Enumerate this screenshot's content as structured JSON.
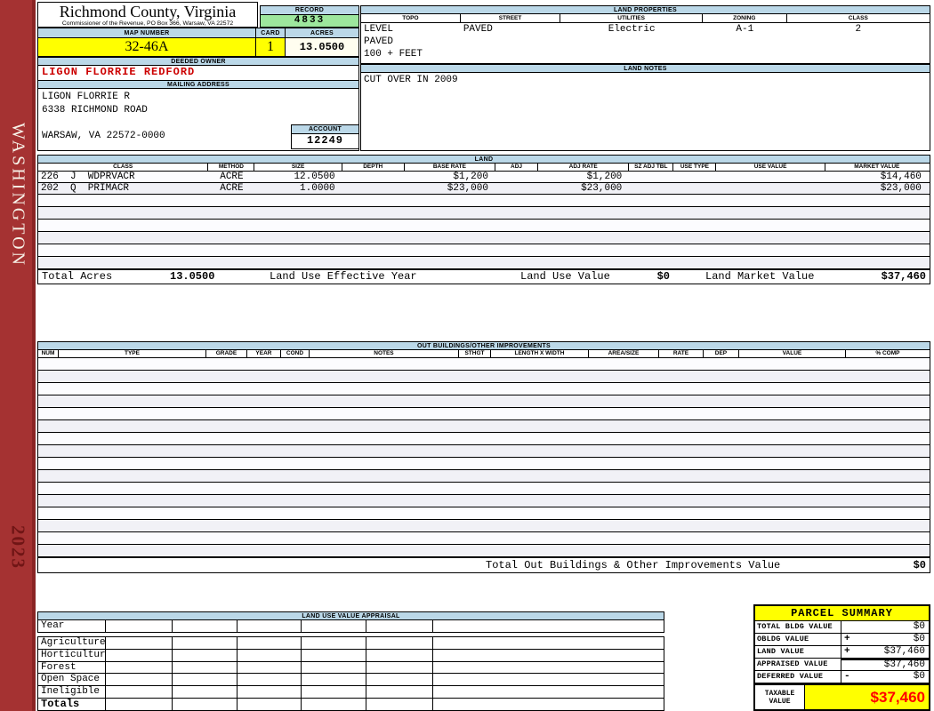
{
  "sidebar": {
    "county": "WASHINGTON",
    "year": "2023"
  },
  "header": {
    "title": "Richmond County, Virginia",
    "subtitle": "Commissioner of the Revenue, PO Box 366, Warsaw, VA 22572",
    "record_label": "RECORD",
    "record_value": "4833",
    "map_number_label": "MAP NUMBER",
    "map_number": "32-46A",
    "card_label": "CARD",
    "card": "1",
    "acres_label": "ACRES",
    "acres": "13.0500"
  },
  "owner": {
    "label": "DEEDED OWNER",
    "name": "LIGON FLORRIE REDFORD"
  },
  "mailing": {
    "label": "MAILING ADDRESS",
    "lines": [
      "LIGON FLORRIE R",
      "6338 RICHMOND ROAD",
      "",
      "WARSAW, VA 22572-0000"
    ]
  },
  "account": {
    "label": "ACCOUNT",
    "value": "12249"
  },
  "land_properties": {
    "label": "LAND PROPERTIES",
    "columns": [
      "TOPO",
      "STREET",
      "UTILITIES",
      "ZONING",
      "CLASS"
    ],
    "rows": [
      [
        "LEVEL",
        "PAVED",
        "Electric",
        "A-1",
        "2"
      ],
      [
        "PAVED",
        "",
        "",
        "",
        ""
      ],
      [
        "100 + FEET",
        "",
        "",
        "",
        ""
      ]
    ]
  },
  "land_notes": {
    "label": "LAND NOTES",
    "text": "CUT OVER IN 2009"
  },
  "land": {
    "label": "LAND",
    "columns": [
      "CLASS",
      "METHOD",
      "SIZE",
      "DEPTH",
      "BASE RATE",
      "ADJ",
      "ADJ RATE",
      "SZ ADJ TBL",
      "USE TYPE",
      "USE VALUE",
      "MARKET VALUE"
    ],
    "rows": [
      [
        "226  J  WDPRVACR",
        "ACRE",
        "12.0500",
        "",
        "$1,200",
        "",
        "$1,200",
        "",
        "",
        "",
        "$14,460"
      ],
      [
        "202  Q  PRIMACR",
        "ACRE",
        "1.0000",
        "",
        "$23,000",
        "",
        "$23,000",
        "",
        "",
        "",
        "$23,000"
      ]
    ],
    "empty_rows": 6,
    "totals": {
      "total_acres_label": "Total Acres",
      "total_acres": "13.0500",
      "effective_year_label": "Land Use Effective Year",
      "use_value_label": "Land Use Value",
      "use_value": "$0",
      "market_value_label": "Land Market Value",
      "market_value": "$37,460"
    }
  },
  "out_buildings": {
    "label": "OUT BUILDINGS/OTHER IMPROVEMENTS",
    "columns": [
      "NUM",
      "TYPE",
      "GRADE",
      "YEAR",
      "COND",
      "NOTES",
      "STHGT",
      "LENGTH X WIDTH",
      "AREA/SIZE",
      "RATE",
      "DEP",
      "VALUE",
      "% COMP"
    ],
    "empty_rows": 16,
    "total_label": "Total Out Buildings & Other Improvements Value",
    "total_value": "$0"
  },
  "land_use_appraisal": {
    "label": "LAND USE VALUE APPRAISAL",
    "row_labels": [
      "Year",
      "Agriculture",
      "Horticulture",
      "Forest",
      "Open Space",
      "Ineligible",
      "Totals"
    ],
    "data_columns": 6
  },
  "parcel_summary": {
    "label": "PARCEL SUMMARY",
    "rows": [
      {
        "label": "TOTAL BLDG VALUE",
        "op": "",
        "value": "$0"
      },
      {
        "label": "OBLDG VALUE",
        "op": "+",
        "value": "$0"
      },
      {
        "label": "LAND VALUE",
        "op": "+",
        "value": "$37,460"
      },
      {
        "label": "APPRAISED VALUE",
        "op": "",
        "value": "$37,460",
        "sum_line": true
      },
      {
        "label": "DEFERRED VALUE",
        "op": "-",
        "value": "$0"
      }
    ],
    "taxable": {
      "label": "TAXABLE VALUE",
      "value": "$37,460"
    }
  },
  "colors": {
    "sidebar_red": "#A53232",
    "header_blue": "#BBD8E8",
    "record_green": "#9DE79D",
    "highlight_yellow": "#FFFF00",
    "owner_red": "#CC0000",
    "taxable_red": "#FF0000"
  }
}
